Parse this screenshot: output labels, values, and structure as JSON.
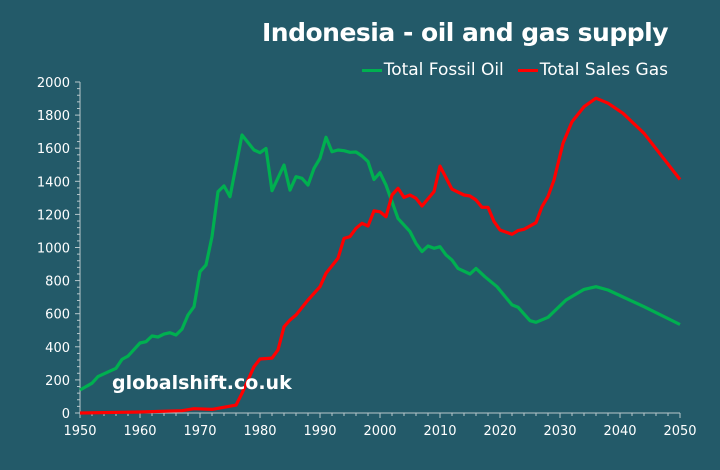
{
  "chart_data": {
    "type": "line",
    "title": "Indonesia - oil and gas supply",
    "xlabel": "",
    "ylabel": "",
    "xlim": [
      1950,
      2050
    ],
    "ylim": [
      0,
      2000
    ],
    "x_ticks": [
      "1950",
      "1960",
      "1970",
      "1980",
      "1990",
      "2000",
      "2010",
      "2020",
      "2030",
      "2040",
      "2050"
    ],
    "y_ticks": [
      "0",
      "200",
      "400",
      "600",
      "800",
      "1000",
      "1200",
      "1400",
      "1600",
      "1800",
      "2000"
    ],
    "grid": false,
    "legend": "top-right",
    "watermark": "globalshift.co.uk",
    "series": [
      {
        "name": "Total Fossil Oil",
        "color": "#00b050",
        "x": [
          1950,
          1952,
          1953,
          1956,
          1957,
          1958,
          1960,
          1961,
          1962,
          1963,
          1964,
          1965,
          1966,
          1967,
          1968,
          1969,
          1970,
          1971,
          1972,
          1973,
          1974,
          1975,
          1977,
          1979,
          1980,
          1981,
          1982,
          1984,
          1985,
          1986,
          1987,
          1988,
          1989,
          1990,
          1991,
          1992,
          1993,
          1994,
          1995,
          1996,
          1997,
          1998,
          1999,
          2000,
          2001,
          2003,
          2005,
          2006,
          2007,
          2008,
          2009,
          2010,
          2011,
          2012,
          2013,
          2015,
          2016,
          2017.5,
          2019.5,
          2022,
          2023,
          2025,
          2026,
          2028,
          2031,
          2034,
          2036,
          2038,
          2044,
          2050
        ],
        "y": [
          139,
          180,
          220,
          270,
          324,
          344,
          423,
          431,
          465,
          459,
          477,
          485,
          471,
          507,
          592,
          642,
          854,
          894,
          1065,
          1337,
          1372,
          1307,
          1680,
          1589,
          1573,
          1599,
          1343,
          1498,
          1347,
          1428,
          1418,
          1377,
          1478,
          1539,
          1666,
          1579,
          1589,
          1585,
          1575,
          1577,
          1553,
          1519,
          1411,
          1452,
          1377,
          1176,
          1096,
          1025,
          975,
          1009,
          995,
          1005,
          955,
          924,
          874,
          840,
          874,
          823,
          763,
          653,
          639,
          558,
          548,
          578,
          683,
          747,
          763,
          743,
          642,
          535
        ]
      },
      {
        "name": "Total Sales Gas",
        "color": "#ff0000",
        "x": [
          1950,
          1960,
          1967,
          1969,
          1972,
          1976,
          1977,
          1979,
          1980,
          1982,
          1983,
          1984,
          1985,
          1986,
          1988,
          1990,
          1991,
          1993,
          1994,
          1995,
          1996,
          1997,
          1998,
          1999,
          2000,
          2001,
          2002,
          2003,
          2004,
          2005,
          2006,
          2007,
          2009,
          2010,
          2012,
          2014,
          2015,
          2016,
          2017,
          2018,
          2019,
          2020,
          2022,
          2023,
          2024,
          2026,
          2027,
          2028,
          2029,
          2030.5,
          2032,
          2034,
          2036,
          2038,
          2040.5,
          2044,
          2050
        ],
        "y": [
          0,
          6,
          14,
          26,
          22,
          48,
          119,
          280,
          326,
          332,
          381,
          521,
          562,
          592,
          683,
          763,
          844,
          935,
          1055,
          1066,
          1116,
          1146,
          1130,
          1222,
          1216,
          1186,
          1317,
          1358,
          1303,
          1317,
          1297,
          1251,
          1338,
          1492,
          1352,
          1317,
          1311,
          1287,
          1243,
          1243,
          1157,
          1106,
          1080,
          1102,
          1110,
          1150,
          1247,
          1308,
          1408,
          1630,
          1760,
          1851,
          1902,
          1872,
          1811,
          1690,
          1411
        ]
      }
    ]
  }
}
